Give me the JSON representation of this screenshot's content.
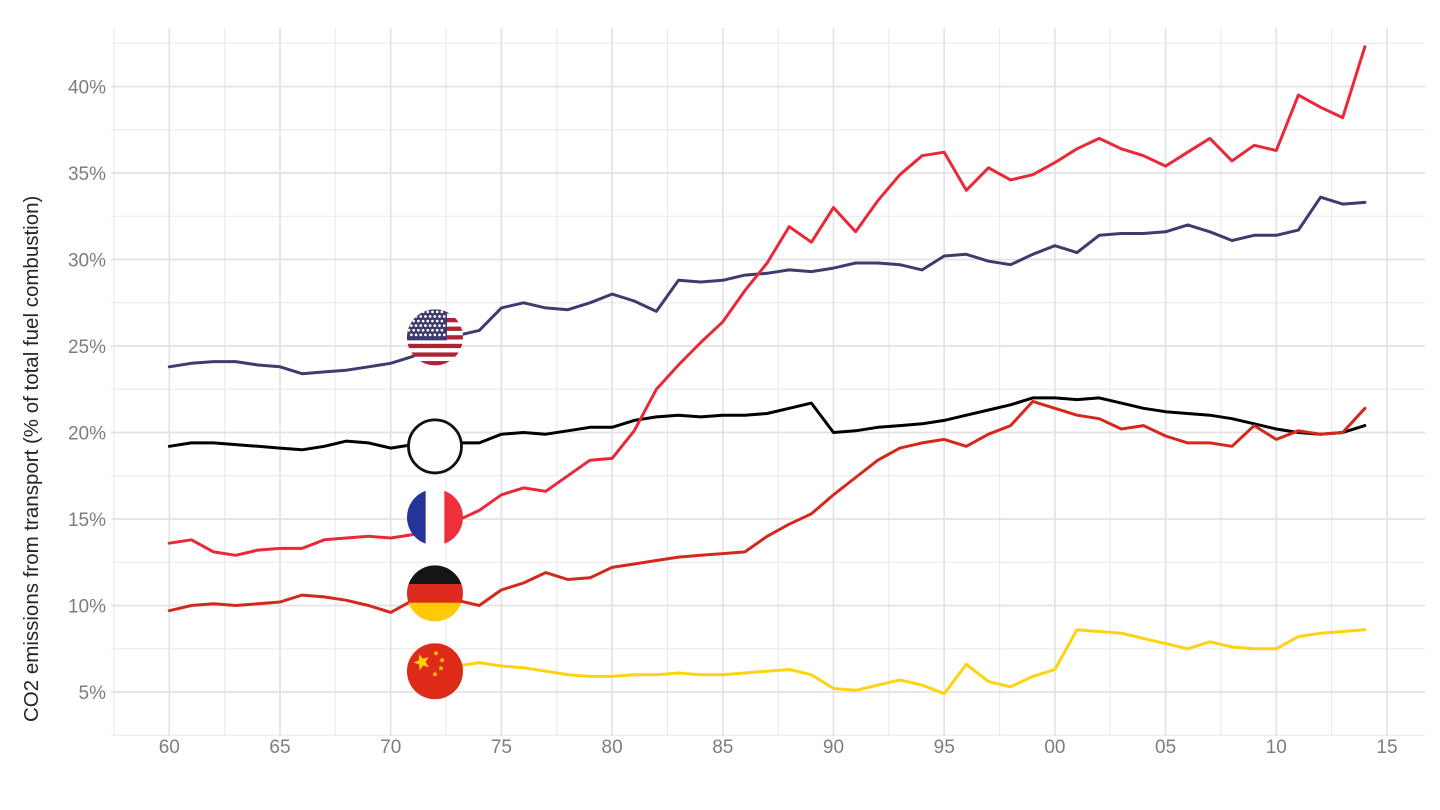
{
  "chart_data": {
    "type": "line",
    "title": "",
    "xlabel": "",
    "ylabel": "CO2 emissions from transport (% of total fuel combustion)",
    "x_range": [
      1957.3,
      2016.7
    ],
    "y_range": [
      2.5,
      43.3
    ],
    "grid": {
      "major": true,
      "minor": true,
      "major_color": "#e3e3e3",
      "minor_color": "#ececec"
    },
    "legend_position": "inline-flag-markers",
    "x_ticks": [
      {
        "year": 1960,
        "label": "60"
      },
      {
        "year": 1965,
        "label": "65"
      },
      {
        "year": 1970,
        "label": "70"
      },
      {
        "year": 1975,
        "label": "75"
      },
      {
        "year": 1980,
        "label": "80"
      },
      {
        "year": 1985,
        "label": "85"
      },
      {
        "year": 1990,
        "label": "90"
      },
      {
        "year": 1995,
        "label": "95"
      },
      {
        "year": 2000,
        "label": "00"
      },
      {
        "year": 2005,
        "label": "05"
      },
      {
        "year": 2010,
        "label": "10"
      },
      {
        "year": 2015,
        "label": "15"
      }
    ],
    "y_ticks": [
      {
        "value": 5,
        "label": "5%"
      },
      {
        "value": 10,
        "label": "10%"
      },
      {
        "value": 15,
        "label": "15%"
      },
      {
        "value": 20,
        "label": "20%"
      },
      {
        "value": 25,
        "label": "25%"
      },
      {
        "value": 30,
        "label": "30%"
      },
      {
        "value": 35,
        "label": "35%"
      },
      {
        "value": 40,
        "label": "40%"
      }
    ],
    "series": [
      {
        "name": "United States",
        "icon": "us-flag-icon",
        "color": "#3e3c6e",
        "start_year": 1960,
        "values": [
          23.8,
          24.0,
          24.1,
          24.1,
          23.9,
          23.8,
          23.4,
          23.5,
          23.6,
          23.8,
          24.0,
          24.4,
          25.2,
          25.6,
          25.9,
          27.2,
          27.5,
          27.2,
          27.1,
          27.5,
          28.0,
          27.6,
          27.0,
          28.8,
          28.7,
          28.8,
          29.1,
          29.2,
          29.4,
          29.3,
          29.5,
          29.8,
          29.8,
          29.7,
          29.4,
          30.2,
          30.3,
          29.9,
          29.7,
          30.3,
          30.8,
          30.4,
          31.4,
          31.5,
          31.5,
          31.6,
          32.0,
          31.6,
          31.1,
          31.4,
          31.4,
          31.7,
          33.6,
          33.2,
          33.3
        ]
      },
      {
        "name": "World",
        "icon": "globe-icon",
        "color": "#000000",
        "start_year": 1960,
        "values": [
          19.2,
          19.4,
          19.4,
          19.3,
          19.2,
          19.1,
          19.0,
          19.2,
          19.5,
          19.4,
          19.1,
          19.3,
          19.3,
          19.4,
          19.4,
          19.9,
          20.0,
          19.9,
          20.1,
          20.3,
          20.3,
          20.7,
          20.9,
          21.0,
          20.9,
          21.0,
          21.0,
          21.1,
          21.4,
          21.7,
          20.0,
          20.1,
          20.3,
          20.4,
          20.5,
          20.7,
          21.0,
          21.3,
          21.6,
          22.0,
          22.0,
          21.9,
          22.0,
          21.7,
          21.4,
          21.2,
          21.1,
          21.0,
          20.8,
          20.5,
          20.2,
          20.0,
          19.9,
          20.0,
          20.4
        ]
      },
      {
        "name": "France",
        "icon": "france-flag-icon",
        "color": "#ea2839",
        "start_year": 1960,
        "values": [
          13.6,
          13.8,
          13.1,
          12.9,
          13.2,
          13.3,
          13.3,
          13.8,
          13.9,
          14.0,
          13.9,
          14.1,
          14.5,
          14.9,
          15.5,
          16.4,
          16.8,
          16.6,
          17.5,
          18.4,
          18.5,
          20.1,
          22.5,
          23.9,
          25.2,
          26.4,
          28.2,
          29.8,
          31.9,
          31.0,
          33.0,
          31.6,
          33.4,
          34.9,
          36.0,
          36.2,
          34.0,
          35.3,
          34.6,
          34.9,
          35.6,
          36.4,
          37.0,
          36.4,
          36.0,
          35.4,
          36.2,
          37.0,
          35.7,
          36.6,
          36.3,
          39.5,
          38.8,
          38.2,
          42.3
        ]
      },
      {
        "name": "Germany",
        "icon": "germany-flag-icon",
        "color": "#d5281c",
        "start_year": 1960,
        "values": [
          9.7,
          10.0,
          10.1,
          10.0,
          10.1,
          10.2,
          10.6,
          10.5,
          10.3,
          10.0,
          9.6,
          10.3,
          10.5,
          10.3,
          10.0,
          10.9,
          11.3,
          11.9,
          11.5,
          11.6,
          12.2,
          12.4,
          12.6,
          12.8,
          12.9,
          13.0,
          13.1,
          14.0,
          14.7,
          15.3,
          16.4,
          17.4,
          18.4,
          19.1,
          19.4,
          19.6,
          19.2,
          19.9,
          20.4,
          21.8,
          21.4,
          21.0,
          20.8,
          20.2,
          20.4,
          19.8,
          19.4,
          19.4,
          19.2,
          20.4,
          19.6,
          20.1,
          19.9,
          20.0,
          21.4
        ]
      },
      {
        "name": "China",
        "icon": "china-flag-icon",
        "color": "#ffd30f",
        "start_year": 1971,
        "values": [
          6.3,
          6.4,
          6.5,
          6.7,
          6.5,
          6.4,
          6.2,
          6.0,
          5.9,
          5.9,
          6.0,
          6.0,
          6.1,
          6.0,
          6.0,
          6.1,
          6.2,
          6.3,
          6.0,
          5.2,
          5.1,
          5.4,
          5.7,
          5.4,
          4.9,
          6.6,
          5.6,
          5.3,
          5.9,
          6.3,
          8.6,
          8.5,
          8.4,
          8.1,
          7.8,
          7.5,
          7.9,
          7.6,
          7.5,
          7.5,
          8.2,
          8.4,
          8.5,
          8.6
        ]
      }
    ],
    "legend_markers": [
      {
        "series": "United States",
        "icon": "us-flag-icon",
        "year": 1972,
        "value": 25.5
      },
      {
        "series": "World",
        "icon": "globe-icon",
        "year": 1972,
        "value": 19.2
      },
      {
        "series": "France",
        "icon": "france-flag-icon",
        "year": 1972,
        "value": 15.1
      },
      {
        "series": "Germany",
        "icon": "germany-flag-icon",
        "year": 1972,
        "value": 10.7
      },
      {
        "series": "China",
        "icon": "china-flag-icon",
        "year": 1972,
        "value": 6.2
      }
    ],
    "flag_colors": {
      "us_canton": "#3c3b6e",
      "us_red": "#b22234",
      "us_white": "#ffffff",
      "globe_stroke": "#111111",
      "france_blue": "#26339b",
      "france_white": "#ffffff",
      "france_red": "#ee2f3c",
      "germany_black": "#151515",
      "germany_red": "#dd2b20",
      "germany_gold": "#ffc908",
      "china_red": "#de2a18",
      "china_gold": "#fcd20a"
    }
  }
}
